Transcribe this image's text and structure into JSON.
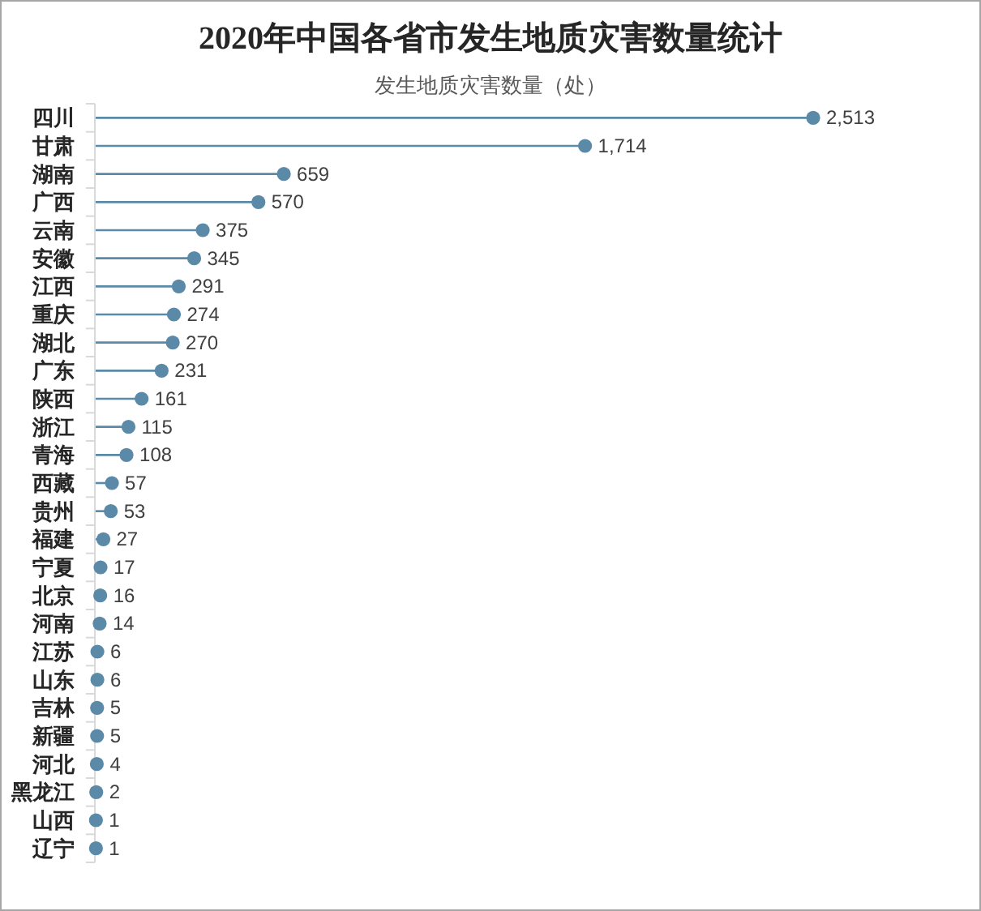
{
  "chart_data": {
    "type": "lollipop",
    "orientation": "horizontal",
    "title": "2020年中国各省市发生地质灾害数量统计",
    "subtitle": "发生地质灾害数量（处）",
    "categories": [
      "四川",
      "甘肃",
      "湖南",
      "广西",
      "云南",
      "安徽",
      "江西",
      "重庆",
      "湖北",
      "广东",
      "陕西",
      "浙江",
      "青海",
      "西藏",
      "贵州",
      "福建",
      "宁夏",
      "北京",
      "河南",
      "江苏",
      "山东",
      "吉林",
      "新疆",
      "河北",
      "黑龙江",
      "山西",
      "辽宁"
    ],
    "values": [
      2513,
      1714,
      659,
      570,
      375,
      345,
      291,
      274,
      270,
      231,
      161,
      115,
      108,
      57,
      53,
      27,
      17,
      16,
      14,
      6,
      6,
      5,
      5,
      4,
      2,
      1,
      1
    ],
    "value_labels": [
      "2,513",
      "1,714",
      "659",
      "570",
      "375",
      "345",
      "291",
      "274",
      "270",
      "231",
      "161",
      "115",
      "108",
      "57",
      "53",
      "27",
      "17",
      "16",
      "14",
      "6",
      "6",
      "5",
      "5",
      "4",
      "2",
      "1",
      "1"
    ],
    "color": "#5a8aa8"
  }
}
